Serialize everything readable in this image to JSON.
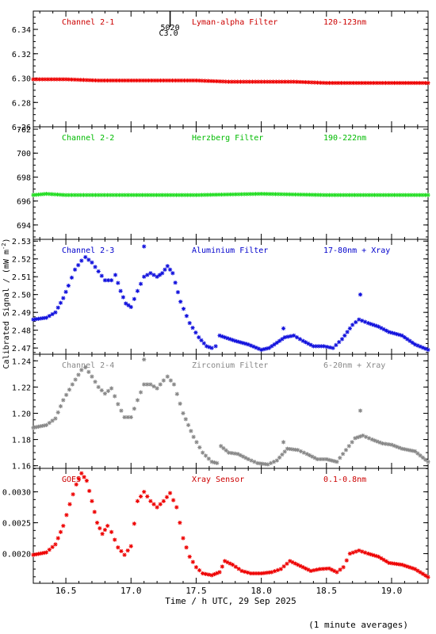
{
  "footnote": "(1 minute averages)",
  "chart_data": {
    "type": "scatter",
    "xlabel": "Time / h UTC, 29 Sep 2025",
    "ylabel": "Calibrated Signal / (mW m",
    "ylabel_sup": "-2",
    "ylabel_tail": ")",
    "xlim": [
      16.25,
      19.28
    ],
    "xticks": [
      16.5,
      17.0,
      17.5,
      18.0,
      18.5,
      19.0
    ],
    "xticklabels": [
      "16.5",
      "17.0",
      "17.5",
      "18.0",
      "18.5",
      "19.0"
    ],
    "marker_annotation": {
      "x": 17.3,
      "labels": [
        "5020",
        "C3.0"
      ]
    },
    "panels": [
      {
        "channel": "Channel 2-1",
        "filter": "Lyman-alpha Filter",
        "band": "120-123nm",
        "label_color": "#cc0000",
        "point_color": "#ee0000",
        "ylim": [
          6.26,
          6.355
        ],
        "yticks": [
          6.26,
          6.28,
          6.3,
          6.32,
          6.34
        ],
        "yticklabels": [
          "6.26",
          "6.28",
          "6.30",
          "6.32",
          "6.34"
        ],
        "points": [
          [
            16.25,
            6.299
          ],
          [
            16.5,
            6.299
          ],
          [
            16.75,
            6.298
          ],
          [
            17.0,
            6.298
          ],
          [
            17.25,
            6.298
          ],
          [
            17.5,
            6.298
          ],
          [
            17.75,
            6.297
          ],
          [
            18.0,
            6.297
          ],
          [
            18.25,
            6.297
          ],
          [
            18.5,
            6.296
          ],
          [
            18.75,
            6.296
          ],
          [
            19.0,
            6.296
          ],
          [
            19.28,
            6.296
          ]
        ]
      },
      {
        "channel": "Channel 2-2",
        "filter": "Herzberg Filter",
        "band": "190-222nm",
        "label_color": "#00bb00",
        "point_color": "#22dd22",
        "ylim": [
          692.8,
          702.2
        ],
        "yticks": [
          694,
          696,
          698,
          700,
          702
        ],
        "yticklabels": [
          "694",
          "696",
          "698",
          "700",
          "702"
        ],
        "points": [
          [
            16.25,
            696.5
          ],
          [
            16.35,
            696.6
          ],
          [
            16.5,
            696.5
          ],
          [
            16.75,
            696.5
          ],
          [
            17.0,
            696.5
          ],
          [
            17.5,
            696.5
          ],
          [
            18.0,
            696.6
          ],
          [
            18.5,
            696.5
          ],
          [
            19.0,
            696.5
          ],
          [
            19.28,
            696.5
          ]
        ]
      },
      {
        "channel": "Channel 2-3",
        "filter": "Aluminium Filter",
        "band": "17-80nm + Xray",
        "label_color": "#0000cc",
        "point_color": "#1111dd",
        "ylim": [
          2.4665,
          2.531
        ],
        "yticks": [
          2.47,
          2.48,
          2.49,
          2.5,
          2.51,
          2.52,
          2.53
        ],
        "yticklabels": [
          "2.47",
          "2.48",
          "2.49",
          "2.50",
          "2.51",
          "2.52",
          "2.53"
        ],
        "outliers": [
          [
            17.1,
            2.527
          ],
          [
            18.17,
            2.481
          ],
          [
            18.76,
            2.5
          ]
        ],
        "points": [
          [
            16.25,
            2.486
          ],
          [
            16.35,
            2.487
          ],
          [
            16.42,
            2.49
          ],
          [
            16.48,
            2.498
          ],
          [
            16.52,
            2.505
          ],
          [
            16.57,
            2.514
          ],
          [
            16.62,
            2.519
          ],
          [
            16.65,
            2.521
          ],
          [
            16.7,
            2.518
          ],
          [
            16.75,
            2.513
          ],
          [
            16.8,
            2.508
          ],
          [
            16.85,
            2.508
          ],
          [
            16.88,
            2.511
          ],
          [
            16.92,
            2.502
          ],
          [
            16.96,
            2.495
          ],
          [
            17.0,
            2.493
          ],
          [
            17.05,
            2.502
          ],
          [
            17.1,
            2.51
          ],
          [
            17.15,
            2.512
          ],
          [
            17.2,
            2.51
          ],
          [
            17.24,
            2.512
          ],
          [
            17.28,
            2.516
          ],
          [
            17.32,
            2.512
          ],
          [
            17.38,
            2.496
          ],
          [
            17.45,
            2.484
          ],
          [
            17.52,
            2.476
          ],
          [
            17.58,
            2.471
          ],
          [
            17.62,
            2.47
          ],
          [
            17.65,
            2.471
          ],
          [
            17.68,
            2.477
          ],
          [
            17.72,
            2.476
          ],
          [
            17.8,
            2.474
          ],
          [
            17.9,
            2.472
          ],
          [
            18.0,
            2.469
          ],
          [
            18.06,
            2.47
          ],
          [
            18.12,
            2.473
          ],
          [
            18.18,
            2.476
          ],
          [
            18.25,
            2.477
          ],
          [
            18.32,
            2.474
          ],
          [
            18.4,
            2.471
          ],
          [
            18.48,
            2.471
          ],
          [
            18.55,
            2.47
          ],
          [
            18.62,
            2.475
          ],
          [
            18.7,
            2.483
          ],
          [
            18.75,
            2.486
          ],
          [
            18.82,
            2.484
          ],
          [
            18.9,
            2.482
          ],
          [
            18.98,
            2.479
          ],
          [
            19.08,
            2.477
          ],
          [
            19.18,
            2.472
          ],
          [
            19.28,
            2.469
          ]
        ]
      },
      {
        "channel": "Channel 2-4",
        "filter": "Zirconium Filter",
        "band": "6-20nm + Xray",
        "label_color": "#888888",
        "point_color": "#888888",
        "ylim": [
          1.158,
          1.245
        ],
        "yticks": [
          1.16,
          1.18,
          1.2,
          1.22,
          1.24
        ],
        "yticklabels": [
          "1.16",
          "1.18",
          "1.20",
          "1.22",
          "1.24"
        ],
        "outliers": [
          [
            17.1,
            1.241
          ],
          [
            18.17,
            1.178
          ],
          [
            18.76,
            1.202
          ]
        ],
        "points": [
          [
            16.25,
            1.189
          ],
          [
            16.35,
            1.191
          ],
          [
            16.42,
            1.196
          ],
          [
            16.48,
            1.21
          ],
          [
            16.55,
            1.222
          ],
          [
            16.62,
            1.233
          ],
          [
            16.65,
            1.235
          ],
          [
            16.7,
            1.228
          ],
          [
            16.75,
            1.22
          ],
          [
            16.8,
            1.215
          ],
          [
            16.85,
            1.219
          ],
          [
            16.9,
            1.207
          ],
          [
            16.95,
            1.197
          ],
          [
            17.0,
            1.197
          ],
          [
            17.05,
            1.21
          ],
          [
            17.1,
            1.222
          ],
          [
            17.15,
            1.222
          ],
          [
            17.2,
            1.219
          ],
          [
            17.25,
            1.225
          ],
          [
            17.28,
            1.228
          ],
          [
            17.33,
            1.222
          ],
          [
            17.4,
            1.2
          ],
          [
            17.48,
            1.182
          ],
          [
            17.55,
            1.17
          ],
          [
            17.62,
            1.163
          ],
          [
            17.66,
            1.162
          ],
          [
            17.69,
            1.175
          ],
          [
            17.75,
            1.17
          ],
          [
            17.82,
            1.169
          ],
          [
            17.9,
            1.165
          ],
          [
            17.97,
            1.162
          ],
          [
            18.05,
            1.161
          ],
          [
            18.12,
            1.164
          ],
          [
            18.2,
            1.173
          ],
          [
            18.28,
            1.172
          ],
          [
            18.35,
            1.169
          ],
          [
            18.43,
            1.165
          ],
          [
            18.5,
            1.165
          ],
          [
            18.58,
            1.163
          ],
          [
            18.65,
            1.172
          ],
          [
            18.72,
            1.181
          ],
          [
            18.78,
            1.183
          ],
          [
            18.85,
            1.18
          ],
          [
            18.93,
            1.177
          ],
          [
            19.0,
            1.176
          ],
          [
            19.08,
            1.173
          ],
          [
            19.18,
            1.171
          ],
          [
            19.28,
            1.163
          ]
        ]
      },
      {
        "channel": "GOES",
        "filter": "Xray Sensor",
        "band": "0.1-0.8nm",
        "label_color": "#cc0000",
        "point_color": "#ee0000",
        "ylim": [
          0.00152,
          0.00338
        ],
        "yticks": [
          0.002,
          0.0025,
          0.003
        ],
        "yticklabels": [
          "0.0020",
          "0.0025",
          "0.0030"
        ],
        "points": [
          [
            16.25,
            0.00198
          ],
          [
            16.35,
            0.00202
          ],
          [
            16.42,
            0.00215
          ],
          [
            16.48,
            0.00245
          ],
          [
            16.53,
            0.0028
          ],
          [
            16.58,
            0.00312
          ],
          [
            16.62,
            0.0033
          ],
          [
            16.66,
            0.00318
          ],
          [
            16.7,
            0.00285
          ],
          [
            16.74,
            0.0025
          ],
          [
            16.78,
            0.00232
          ],
          [
            16.82,
            0.00245
          ],
          [
            16.85,
            0.00235
          ],
          [
            16.9,
            0.0021
          ],
          [
            16.95,
            0.00198
          ],
          [
            17.0,
            0.00212
          ],
          [
            17.05,
            0.00285
          ],
          [
            17.1,
            0.003
          ],
          [
            17.15,
            0.00285
          ],
          [
            17.2,
            0.00275
          ],
          [
            17.25,
            0.00285
          ],
          [
            17.3,
            0.00298
          ],
          [
            17.35,
            0.00275
          ],
          [
            17.4,
            0.00225
          ],
          [
            17.45,
            0.00195
          ],
          [
            17.5,
            0.00178
          ],
          [
            17.55,
            0.00168
          ],
          [
            17.62,
            0.00165
          ],
          [
            17.68,
            0.0017
          ],
          [
            17.72,
            0.00188
          ],
          [
            17.78,
            0.00182
          ],
          [
            17.85,
            0.00172
          ],
          [
            17.92,
            0.00168
          ],
          [
            18.0,
            0.00168
          ],
          [
            18.08,
            0.0017
          ],
          [
            18.15,
            0.00175
          ],
          [
            18.22,
            0.00188
          ],
          [
            18.3,
            0.0018
          ],
          [
            18.38,
            0.00172
          ],
          [
            18.45,
            0.00175
          ],
          [
            18.52,
            0.00176
          ],
          [
            18.58,
            0.0017
          ],
          [
            18.63,
            0.00178
          ],
          [
            18.68,
            0.002
          ],
          [
            18.75,
            0.00205
          ],
          [
            18.82,
            0.002
          ],
          [
            18.9,
            0.00195
          ],
          [
            18.98,
            0.00185
          ],
          [
            19.08,
            0.00182
          ],
          [
            19.18,
            0.00175
          ],
          [
            19.28,
            0.00162
          ]
        ]
      }
    ]
  }
}
